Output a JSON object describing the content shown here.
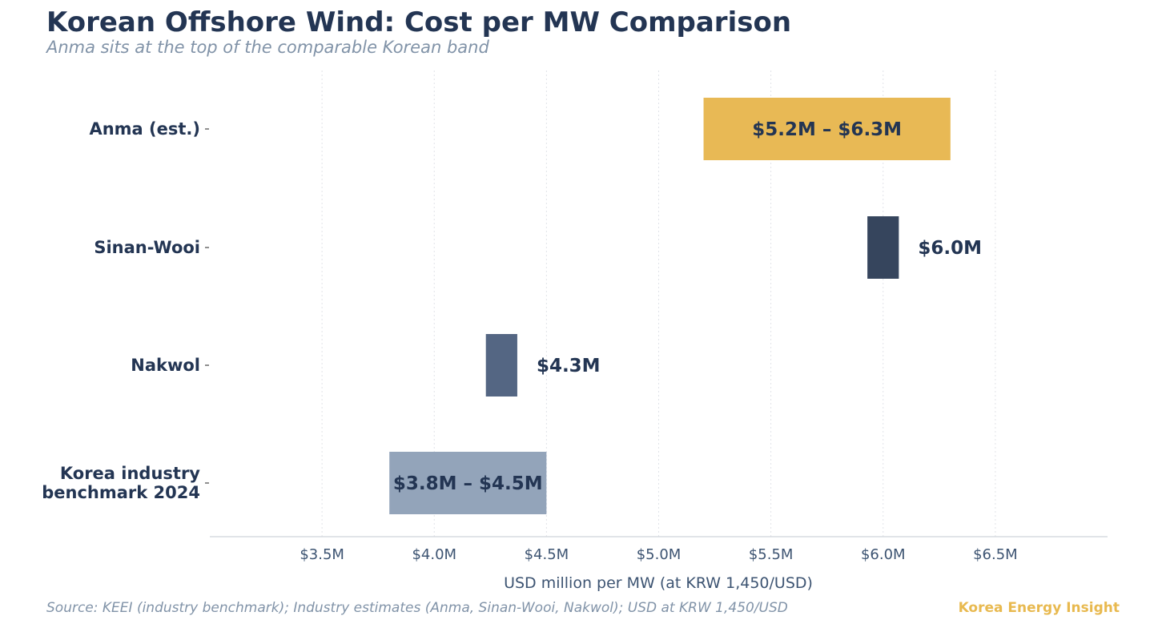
{
  "title": "Korean Offshore Wind: Cost per MW Comparison",
  "subtitle": "Anma sits at the top of the comparable Korean band",
  "source": "Source: KEEI (industry benchmark); Industry estimates (Anma, Sinan-Wooi, Nakwol); USD at KRW 1,450/USD",
  "brand": "Korea Energy Insight",
  "colors": {
    "title": "#233553",
    "subtitle": "#8193a8",
    "axis_text": "#3d5472",
    "brand": "#e8b94f"
  },
  "chart_data": {
    "type": "bar",
    "orientation": "horizontal-range",
    "xlabel": "USD million per MW (at KRW 1,450/USD)",
    "ylabel": "",
    "xlim": [
      3.0,
      7.0
    ],
    "xticks": [
      3.5,
      4.0,
      4.5,
      5.0,
      5.5,
      6.0,
      6.5
    ],
    "xtick_labels": [
      "$3.5M",
      "$4.0M",
      "$4.5M",
      "$5.0M",
      "$5.5M",
      "$6.0M",
      "$6.5M"
    ],
    "grid": "vertical, light",
    "categories": [
      {
        "name": "anma",
        "label_lines": [
          "Anma (est.)"
        ],
        "low": 5.2,
        "high": 6.3,
        "label": "$5.2M – $6.3M",
        "label_position": "inside",
        "color": "#e8b955"
      },
      {
        "name": "sinan-wooi",
        "label_lines": [
          "Sinan-Wooi"
        ],
        "low": 5.93,
        "high": 6.07,
        "label": "$6.0M",
        "label_position": "right",
        "color": "#36455d"
      },
      {
        "name": "nakwol",
        "label_lines": [
          "Nakwol"
        ],
        "low": 4.23,
        "high": 4.37,
        "label": "$4.3M",
        "label_position": "right",
        "color": "#546683"
      },
      {
        "name": "benchmark",
        "label_lines": [
          "Korea industry",
          "benchmark 2024"
        ],
        "low": 3.8,
        "high": 4.5,
        "label": "$3.8M – $4.5M",
        "label_position": "inside",
        "color": "#93a4ba"
      }
    ]
  }
}
